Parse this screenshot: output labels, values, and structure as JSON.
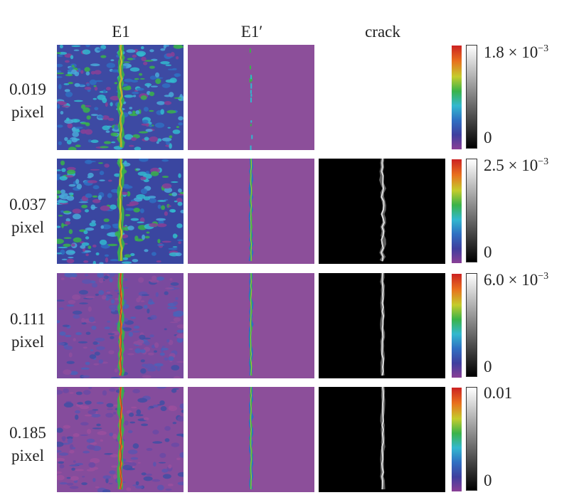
{
  "headers": {
    "e1": "E1",
    "e1_prime": "E1′",
    "crack": "crack"
  },
  "rows": [
    {
      "value": "0.019",
      "unit": "pixel",
      "cbar_max_base": "1.8 × 10",
      "cbar_max_exp": "−3",
      "cbar_max_plain": "",
      "cbar_min": "0",
      "has_crack": false
    },
    {
      "value": "0.037",
      "unit": "pixel",
      "cbar_max_base": "2.5 × 10",
      "cbar_max_exp": "−3",
      "cbar_max_plain": "",
      "cbar_min": "0",
      "has_crack": true
    },
    {
      "value": "0.111",
      "unit": "pixel",
      "cbar_max_base": "6.0 × 10",
      "cbar_max_exp": "−3",
      "cbar_max_plain": "",
      "cbar_min": "0",
      "has_crack": true
    },
    {
      "value": "0.185",
      "unit": "pixel",
      "cbar_max_base": "",
      "cbar_max_exp": "",
      "cbar_max_plain": "0.01",
      "cbar_min": "0",
      "has_crack": true
    }
  ],
  "colors": {
    "background_purple": "#8c4f9a",
    "crack_black": "#000000",
    "crack_line": "#dcdcdc"
  }
}
